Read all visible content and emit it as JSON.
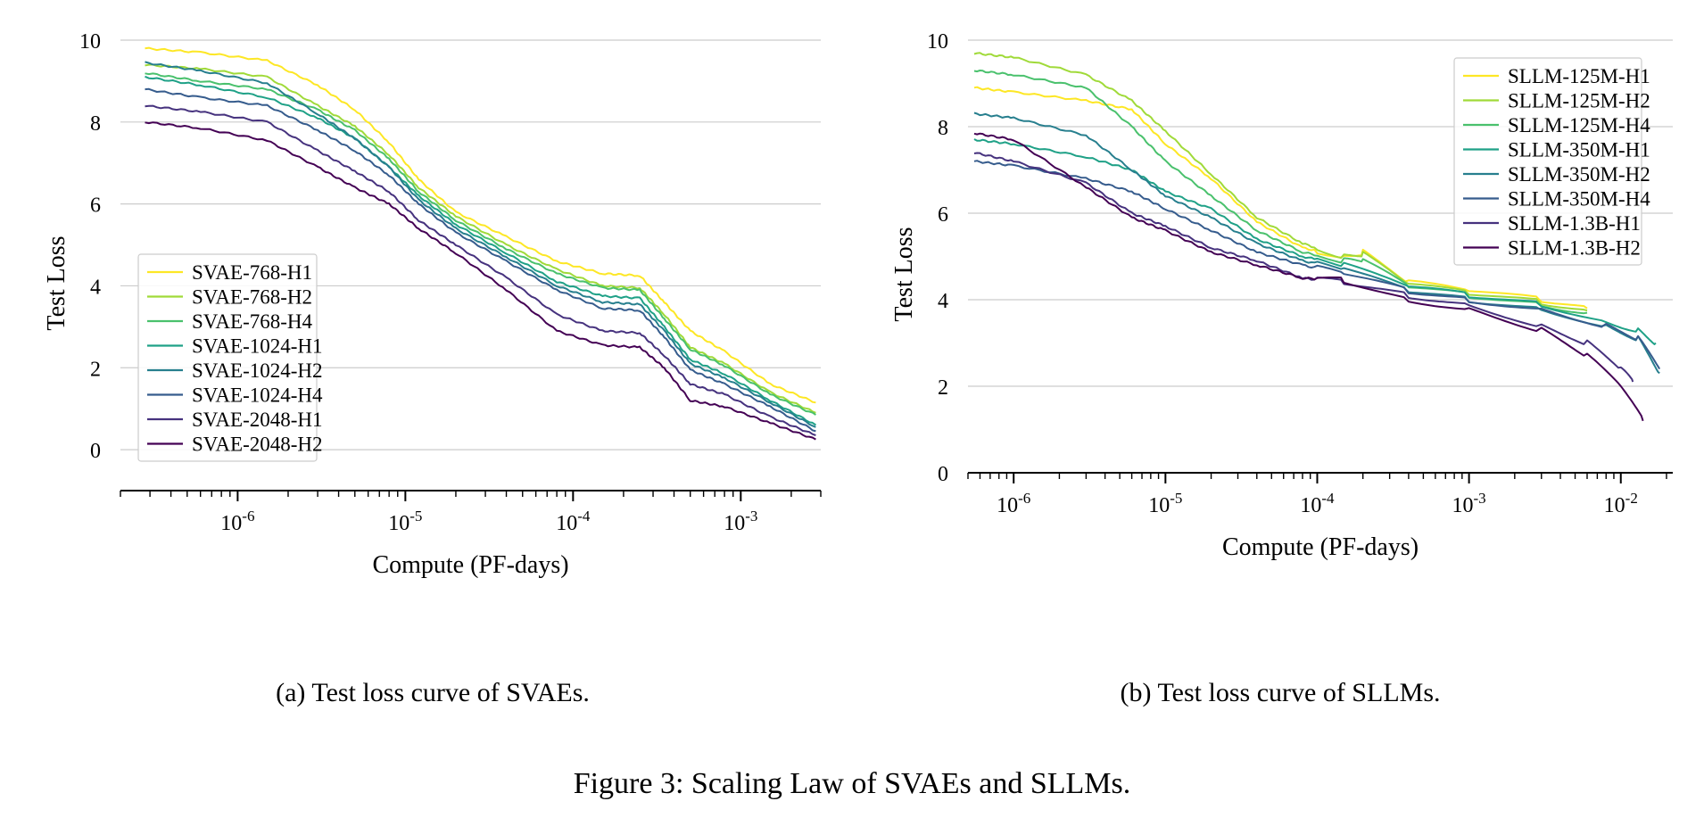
{
  "figure_caption": "Figure 3: Scaling Law of SVAEs and SLLMs.",
  "chart_data": [
    {
      "type": "line",
      "caption_label": "(a)",
      "caption_text": "Test loss curve of SVAEs.",
      "xlabel": "Compute (PF-days)",
      "ylabel": "Test Loss",
      "xscale": "log",
      "xlim": [
        2e-07,
        0.003
      ],
      "ylim": [
        -1,
        10
      ],
      "yticks": [
        "0",
        "2",
        "4",
        "6",
        "8",
        "10"
      ],
      "xticks": [
        {
          "base": "10",
          "exp": "-6"
        },
        {
          "base": "10",
          "exp": "-5"
        },
        {
          "base": "10",
          "exp": "-4"
        },
        {
          "base": "10",
          "exp": "-3"
        }
      ],
      "grid": true,
      "legend_position": "lower-left",
      "series": [
        {
          "name": "SVAE-768-H1",
          "color": "#fde725",
          "x": [
            2.8e-07,
            6e-07,
            1.5e-06,
            3e-06,
            5e-06,
            8e-06,
            1.2e-05,
            2e-05,
            4e-05,
            8e-05,
            0.00015,
            0.00025,
            0.00035,
            0.0005,
            0.0008,
            0.0015,
            0.0028
          ],
          "y": [
            9.8,
            9.7,
            9.5,
            8.9,
            8.3,
            7.5,
            6.6,
            5.8,
            5.2,
            4.6,
            4.3,
            4.25,
            3.6,
            2.9,
            2.4,
            1.6,
            1.15
          ]
        },
        {
          "name": "SVAE-768-H2",
          "color": "#a0da39",
          "x": [
            2.8e-07,
            6e-07,
            1.5e-06,
            3e-06,
            5e-06,
            8e-06,
            1.2e-05,
            2e-05,
            4e-05,
            8e-05,
            0.00015,
            0.00025,
            0.00035,
            0.0005,
            0.0008,
            0.0015,
            0.0028
          ],
          "y": [
            9.4,
            9.3,
            9.1,
            8.4,
            7.9,
            7.2,
            6.4,
            5.7,
            5.0,
            4.4,
            4.0,
            3.95,
            3.3,
            2.5,
            2.1,
            1.4,
            0.9
          ]
        },
        {
          "name": "SVAE-768-H4",
          "color": "#4ac16d",
          "x": [
            2.8e-07,
            6e-07,
            1.5e-06,
            3e-06,
            5e-06,
            8e-06,
            1.2e-05,
            2e-05,
            4e-05,
            8e-05,
            0.00015,
            0.00025,
            0.00035,
            0.0005,
            0.0008,
            0.0015,
            0.0028
          ],
          "y": [
            9.2,
            9.0,
            8.8,
            8.3,
            7.8,
            7.1,
            6.3,
            5.6,
            4.9,
            4.3,
            3.95,
            3.9,
            3.2,
            2.45,
            2.05,
            1.35,
            0.85
          ]
        },
        {
          "name": "SVAE-1024-H1",
          "color": "#1fa187",
          "x": [
            2.8e-07,
            6e-07,
            1.5e-06,
            3e-06,
            5e-06,
            8e-06,
            1.2e-05,
            2e-05,
            4e-05,
            8e-05,
            0.00015,
            0.00025,
            0.00035,
            0.0005,
            0.0008,
            0.0015,
            0.0028
          ],
          "y": [
            9.1,
            8.9,
            8.6,
            8.1,
            7.6,
            6.9,
            6.2,
            5.5,
            4.8,
            4.1,
            3.75,
            3.7,
            3.0,
            2.2,
            1.85,
            1.2,
            0.6
          ]
        },
        {
          "name": "SVAE-1024-H2",
          "color": "#277f8e",
          "x": [
            2.8e-07,
            6e-07,
            1.5e-06,
            3e-06,
            5e-06,
            8e-06,
            1.2e-05,
            2e-05,
            4e-05,
            8e-05,
            0.00015,
            0.00025,
            0.00035,
            0.0005,
            0.0008,
            0.0015,
            0.0028
          ],
          "y": [
            9.45,
            9.25,
            8.95,
            8.2,
            7.6,
            6.9,
            6.1,
            5.4,
            4.7,
            4.0,
            3.6,
            3.55,
            2.9,
            2.1,
            1.75,
            1.15,
            0.55
          ]
        },
        {
          "name": "SVAE-1024-H4",
          "color": "#365c8d",
          "x": [
            2.8e-07,
            6e-07,
            1.5e-06,
            3e-06,
            5e-06,
            8e-06,
            1.2e-05,
            2e-05,
            4e-05,
            8e-05,
            0.00015,
            0.00025,
            0.00035,
            0.0005,
            0.0008,
            0.0015,
            0.0028
          ],
          "y": [
            8.8,
            8.6,
            8.4,
            7.8,
            7.3,
            6.7,
            6.0,
            5.3,
            4.6,
            3.9,
            3.45,
            3.4,
            2.75,
            1.95,
            1.6,
            1.05,
            0.45
          ]
        },
        {
          "name": "SVAE-2048-H1",
          "color": "#46327e",
          "x": [
            2.8e-07,
            6e-07,
            1.5e-06,
            3e-06,
            5e-06,
            8e-06,
            1.2e-05,
            2e-05,
            4e-05,
            8e-05,
            0.00015,
            0.00025,
            0.00035,
            0.0005,
            0.0008,
            0.0015,
            0.0028
          ],
          "y": [
            8.4,
            8.25,
            8.0,
            7.3,
            6.8,
            6.3,
            5.6,
            5.0,
            4.2,
            3.3,
            2.9,
            2.85,
            2.3,
            1.6,
            1.35,
            0.8,
            0.35
          ]
        },
        {
          "name": "SVAE-2048-H2",
          "color": "#440154",
          "x": [
            2.8e-07,
            6e-07,
            1.5e-06,
            3e-06,
            5e-06,
            8e-06,
            1.2e-05,
            2e-05,
            4e-05,
            8e-05,
            0.00015,
            0.00025,
            0.00035,
            0.0005,
            0.0008,
            0.0015,
            0.0028
          ],
          "y": [
            8.0,
            7.85,
            7.55,
            6.9,
            6.4,
            6.0,
            5.4,
            4.8,
            3.9,
            2.9,
            2.55,
            2.5,
            2.0,
            1.2,
            1.05,
            0.65,
            0.25
          ]
        }
      ]
    },
    {
      "type": "line",
      "caption_label": "(b)",
      "caption_text": "Test loss curve of SLLMs.",
      "xlabel": "Compute (PF-days)",
      "ylabel": "Test Loss",
      "xscale": "log",
      "xlim": [
        5e-07,
        0.022
      ],
      "ylim": [
        0,
        10
      ],
      "yticks": [
        "0",
        "2",
        "4",
        "6",
        "8",
        "10"
      ],
      "xticks": [
        {
          "base": "10",
          "exp": "-6"
        },
        {
          "base": "10",
          "exp": "-5"
        },
        {
          "base": "10",
          "exp": "-4"
        },
        {
          "base": "10",
          "exp": "-3"
        },
        {
          "base": "10",
          "exp": "-2"
        }
      ],
      "grid": true,
      "legend_position": "top-right",
      "series": [
        {
          "name": "SLLM-125M-H1",
          "color": "#fde725",
          "x": [
            5.5e-07,
            1e-06,
            3e-06,
            6e-06,
            1e-05,
            2e-05,
            4e-05,
            8e-05,
            0.00015,
            0.0002,
            0.0004,
            0.001,
            0.003,
            0.006
          ],
          "y": [
            8.9,
            8.8,
            8.6,
            8.4,
            7.6,
            6.8,
            5.8,
            5.2,
            5.0,
            5.1,
            4.4,
            4.2,
            4.0,
            3.8
          ]
        },
        {
          "name": "SLLM-125M-H2",
          "color": "#a0da39",
          "x": [
            5.5e-07,
            1e-06,
            3e-06,
            6e-06,
            1e-05,
            2e-05,
            4e-05,
            8e-05,
            0.00015,
            0.0002,
            0.0004,
            0.001,
            0.003,
            0.006
          ],
          "y": [
            9.7,
            9.6,
            9.2,
            8.6,
            7.9,
            6.9,
            5.9,
            5.3,
            5.0,
            5.05,
            4.35,
            4.15,
            3.95,
            3.75
          ]
        },
        {
          "name": "SLLM-125M-H4",
          "color": "#4ac16d",
          "x": [
            5.5e-07,
            1e-06,
            3e-06,
            6e-06,
            1e-05,
            2e-05,
            4e-05,
            8e-05,
            0.00015,
            0.0002,
            0.0004,
            0.001,
            0.003,
            0.006
          ],
          "y": [
            9.3,
            9.2,
            8.9,
            8.0,
            7.2,
            6.4,
            5.6,
            5.1,
            4.9,
            4.9,
            4.3,
            4.1,
            3.9,
            3.7
          ]
        },
        {
          "name": "SLLM-350M-H1",
          "color": "#1fa187",
          "x": [
            5.5e-07,
            1e-06,
            3e-06,
            6e-06,
            1e-05,
            2e-05,
            4e-05,
            8e-05,
            0.00015,
            0.0004,
            0.001,
            0.003,
            0.008,
            0.013,
            0.017
          ],
          "y": [
            7.7,
            7.6,
            7.3,
            7.0,
            6.5,
            6.1,
            5.4,
            5.0,
            4.8,
            4.3,
            4.1,
            3.9,
            3.5,
            3.3,
            3.0
          ]
        },
        {
          "name": "SLLM-350M-H2",
          "color": "#277f8e",
          "x": [
            5.5e-07,
            1e-06,
            3e-06,
            6e-06,
            1e-05,
            2e-05,
            4e-05,
            8e-05,
            0.00015,
            0.0004,
            0.001,
            0.003,
            0.008,
            0.013,
            0.018
          ],
          "y": [
            8.3,
            8.2,
            7.8,
            7.0,
            6.4,
            5.9,
            5.3,
            4.9,
            4.7,
            4.2,
            4.0,
            3.8,
            3.4,
            3.1,
            2.3
          ]
        },
        {
          "name": "SLLM-350M-H4",
          "color": "#365c8d",
          "x": [
            5.5e-07,
            1e-06,
            3e-06,
            6e-06,
            1e-05,
            2e-05,
            4e-05,
            8e-05,
            0.00015,
            0.0004,
            0.001,
            0.003,
            0.008,
            0.013,
            0.018
          ],
          "y": [
            7.2,
            7.1,
            6.8,
            6.5,
            6.1,
            5.6,
            5.1,
            4.8,
            4.6,
            4.2,
            4.0,
            3.8,
            3.4,
            3.1,
            2.4
          ]
        },
        {
          "name": "SLLM-1.3B-H1",
          "color": "#46327e",
          "x": [
            5.5e-07,
            1e-06,
            3e-06,
            6e-06,
            1e-05,
            2e-05,
            4e-05,
            8e-05,
            0.00015,
            0.0004,
            0.001,
            0.003,
            0.006,
            0.01,
            0.012
          ],
          "y": [
            7.4,
            7.2,
            6.7,
            6.0,
            5.7,
            5.2,
            4.9,
            4.5,
            4.4,
            4.1,
            3.9,
            3.4,
            3.0,
            2.4,
            2.1
          ]
        },
        {
          "name": "SLLM-1.3B-H2",
          "color": "#440154",
          "x": [
            5.5e-07,
            1e-06,
            3e-06,
            6e-06,
            1e-05,
            2e-05,
            4e-05,
            8e-05,
            0.00015,
            0.0004,
            0.001,
            0.003,
            0.006,
            0.01,
            0.014
          ],
          "y": [
            7.85,
            7.7,
            6.6,
            5.9,
            5.6,
            5.1,
            4.8,
            4.5,
            4.45,
            4.0,
            3.8,
            3.3,
            2.7,
            2.0,
            1.2
          ]
        }
      ]
    }
  ]
}
